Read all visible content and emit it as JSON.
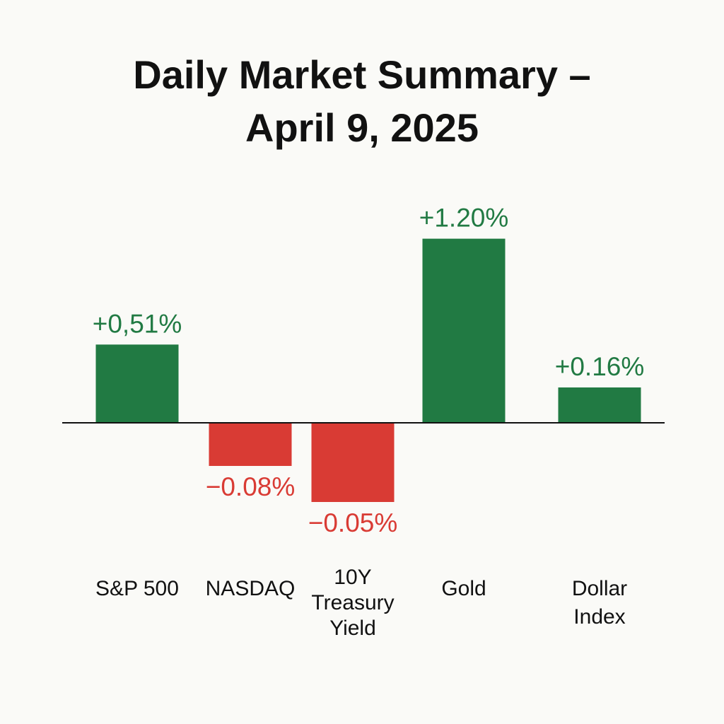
{
  "chart_data": {
    "type": "bar",
    "title_lines": [
      "Daily Market Summary –",
      "April 9, 2025"
    ],
    "categories": [
      "S&P 500",
      "NASDAQ",
      "10Y Treasury Yield",
      "Gold",
      "Dollar Index"
    ],
    "category_label_lines": [
      [
        "S&P 500"
      ],
      [
        "NASDAQ"
      ],
      [
        "10Y",
        "Treasury",
        "Yield"
      ],
      [
        "Gold"
      ],
      [
        "Dollar",
        "Index"
      ]
    ],
    "values": [
      0.51,
      -0.08,
      -0.05,
      1.2,
      0.16
    ],
    "value_labels": [
      "+0,51%",
      "−0.08%",
      "−0.05%",
      "+1.20%",
      "+0.16%"
    ],
    "xlabel": "",
    "ylabel": "",
    "grid": false,
    "legend": "none",
    "colors": {
      "positive": "#217a43",
      "negative": "#d93b34",
      "positive_text": "#217a43",
      "negative_text": "#d93b34",
      "baseline": "#111111",
      "background": "#fafaf7"
    }
  }
}
